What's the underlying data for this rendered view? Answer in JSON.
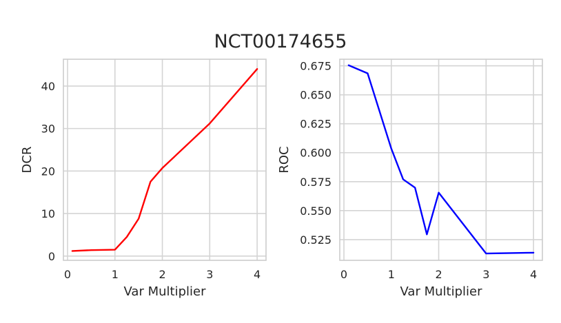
{
  "figure": {
    "suptitle": "NCT00174655"
  },
  "chart_data": [
    {
      "type": "line",
      "xlabel": "Var Multiplier",
      "ylabel": "DCR",
      "xlim": [
        -0.0875,
        4.1875
      ],
      "ylim": [
        -1.0,
        46.3
      ],
      "xticks": [
        0,
        1,
        2,
        3,
        4
      ],
      "yticks": [
        0,
        10,
        20,
        30,
        40
      ],
      "grid": true,
      "series": [
        {
          "color": "#ff0000",
          "x": [
            0.1,
            0.5,
            1.0,
            1.25,
            1.5,
            1.75,
            2.0,
            3.0,
            4.0
          ],
          "y": [
            1.2,
            1.4,
            1.5,
            4.5,
            8.8,
            17.5,
            20.7,
            31.2,
            44.0
          ]
        }
      ]
    },
    {
      "type": "line",
      "xlabel": "Var Multiplier",
      "ylabel": "ROC",
      "xlim": [
        -0.0875,
        4.1875
      ],
      "ylim": [
        0.5071,
        0.6807
      ],
      "xticks": [
        0,
        1,
        2,
        3,
        4
      ],
      "yticks": [
        0.525,
        0.55,
        0.575,
        0.6,
        0.625,
        0.65,
        0.675
      ],
      "ytick_labels": [
        "0.525",
        "0.550",
        "0.575",
        "0.600",
        "0.625",
        "0.650",
        "0.675"
      ],
      "grid": true,
      "series": [
        {
          "color": "#0000ff",
          "x": [
            0.1,
            0.5,
            1.0,
            1.25,
            1.5,
            1.75,
            2.0,
            3.0,
            4.0
          ],
          "y": [
            0.6755,
            0.6685,
            0.6035,
            0.577,
            0.5698,
            0.5295,
            0.5655,
            0.513,
            0.5137
          ]
        }
      ]
    }
  ]
}
